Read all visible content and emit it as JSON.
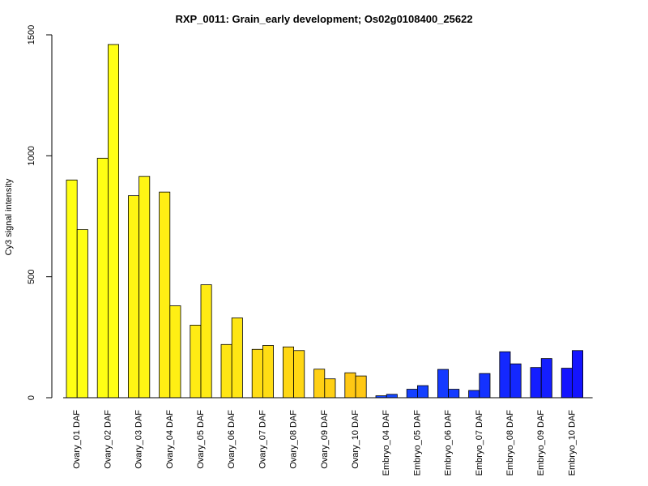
{
  "chart_data": {
    "type": "bar",
    "title": "RXP_0011: Grain_early development; Os02g0108400_25622",
    "xlabel": "",
    "ylabel": "Cy3 signal intensity",
    "ylim": [
      0,
      1500
    ],
    "yticks": [
      0,
      500,
      1000,
      1500
    ],
    "grid": false,
    "legend": "none",
    "categories": [
      "Ovary_01 DAF",
      "Ovary_02 DAF",
      "Ovary_03 DAF",
      "Ovary_04 DAF",
      "Ovary_05 DAF",
      "Ovary_06 DAF",
      "Ovary_07 DAF",
      "Ovary_08 DAF",
      "Ovary_09 DAF",
      "Ovary_10 DAF",
      "Embryo_04 DAF",
      "Embryo_05 DAF",
      "Embryo_06 DAF",
      "Embryo_07 DAF",
      "Embryo_08 DAF",
      "Embryo_09 DAF",
      "Embryo_10 DAF"
    ],
    "colors": [
      "#ffff14",
      "#ffff14",
      "#fff514",
      "#ffef14",
      "#ffeb14",
      "#ffe614",
      "#ffdd14",
      "#ffd714",
      "#ffd014",
      "#ffc814",
      "#1446ff",
      "#1440ff",
      "#143aff",
      "#1432ff",
      "#1428ff",
      "#141eff",
      "#1414ff"
    ],
    "series": [
      {
        "values": [
          900,
          990,
          835,
          850,
          300,
          220,
          200,
          210,
          118,
          103,
          8,
          35,
          117,
          30,
          190,
          125,
          122
        ]
      },
      {
        "values": [
          695,
          1460,
          915,
          380,
          467,
          330,
          216,
          195,
          78,
          90,
          14,
          50,
          35,
          100,
          140,
          162,
          195
        ]
      }
    ]
  }
}
